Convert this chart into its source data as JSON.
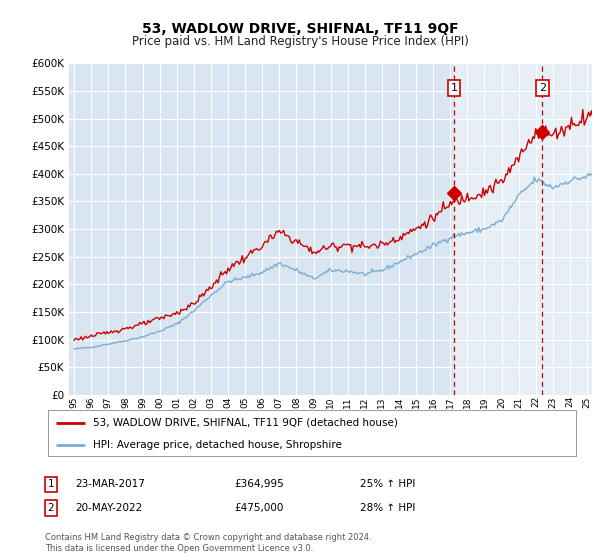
{
  "title": "53, WADLOW DRIVE, SHIFNAL, TF11 9QF",
  "subtitle": "Price paid vs. HM Land Registry's House Price Index (HPI)",
  "legend_line1": "53, WADLOW DRIVE, SHIFNAL, TF11 9QF (detached house)",
  "legend_line2": "HPI: Average price, detached house, Shropshire",
  "annotation1_label": "1",
  "annotation1_date": "23-MAR-2017",
  "annotation1_price": "£364,995",
  "annotation1_hpi": "25% ↑ HPI",
  "annotation1_year": 2017.22,
  "annotation1_value": 364995,
  "annotation2_label": "2",
  "annotation2_date": "20-MAY-2022",
  "annotation2_price": "£475,000",
  "annotation2_hpi": "28% ↑ HPI",
  "annotation2_year": 2022.38,
  "annotation2_value": 475000,
  "footer": "Contains HM Land Registry data © Crown copyright and database right 2024.\nThis data is licensed under the Open Government Licence v3.0.",
  "ylim": [
    0,
    600000
  ],
  "yticks": [
    0,
    50000,
    100000,
    150000,
    200000,
    250000,
    300000,
    350000,
    400000,
    450000,
    500000,
    550000,
    600000
  ],
  "xlim_start": 1994.7,
  "xlim_end": 2025.3,
  "bg_color": "#d9e6f2",
  "highlight_color": "#c5d8ee",
  "red_color": "#cc0000",
  "blue_color": "#7aaed6",
  "grid_color": "#ffffff"
}
